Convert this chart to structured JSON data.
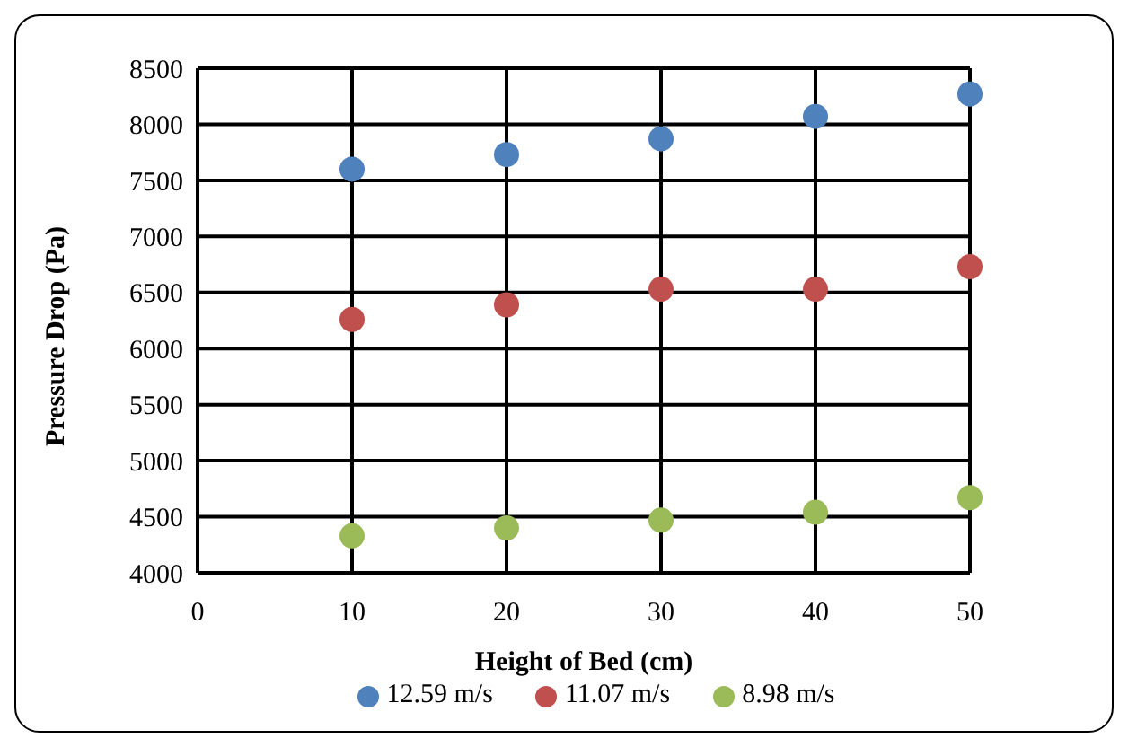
{
  "chart_data": {
    "type": "scatter",
    "xlabel": "Height of Bed (cm)",
    "ylabel": "Pressure Drop (Pa)",
    "x": [
      10,
      20,
      30,
      40,
      50
    ],
    "series": [
      {
        "name": "12.59 m/s",
        "color": "#4f81bd",
        "values": [
          7600,
          7730,
          7870,
          8070,
          8270
        ]
      },
      {
        "name": "11.07 m/s",
        "color": "#c0504d",
        "values": [
          6260,
          6390,
          6530,
          6530,
          6730
        ]
      },
      {
        "name": "8.98 m/s",
        "color": "#9bbb59",
        "values": [
          4330,
          4400,
          4470,
          4540,
          4670
        ]
      }
    ],
    "xlim": [
      0,
      50
    ],
    "xticks": [
      0,
      10,
      20,
      30,
      40,
      50
    ],
    "ylim": [
      4000,
      8500
    ],
    "yticks": [
      4000,
      4500,
      5000,
      5500,
      6000,
      6500,
      7000,
      7500,
      8000,
      8500
    ],
    "grid": true,
    "legend": "bottom",
    "marker": "circle"
  }
}
